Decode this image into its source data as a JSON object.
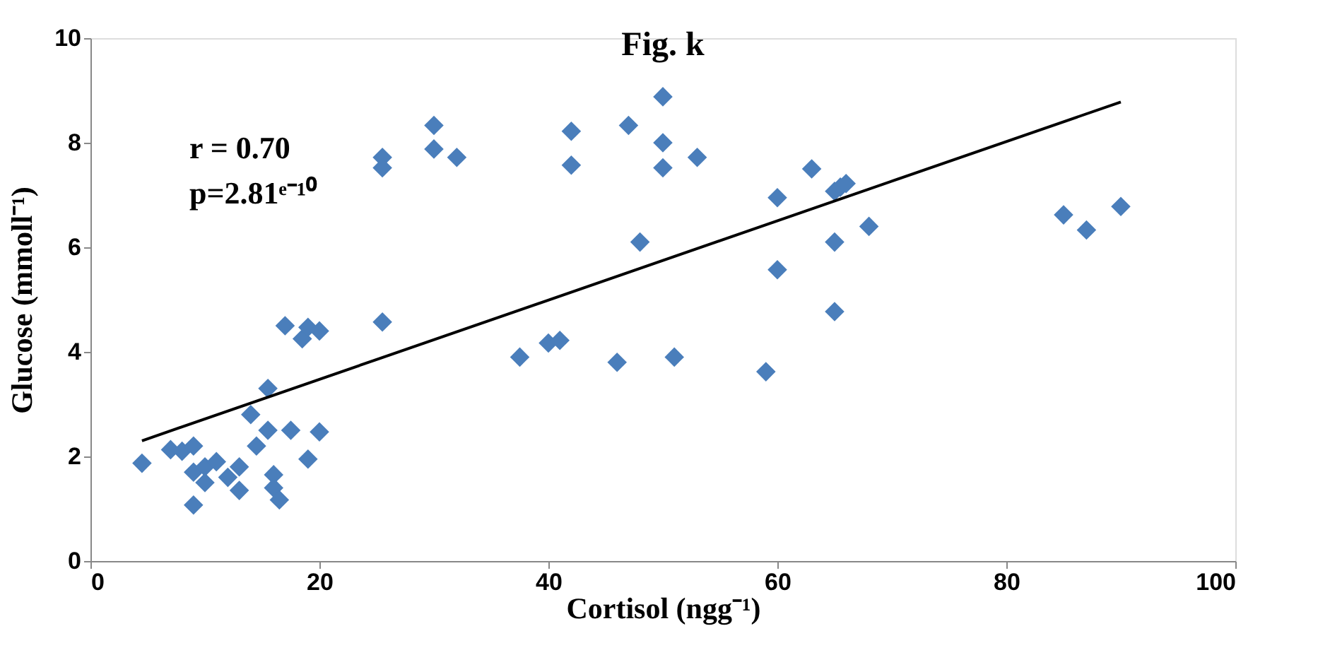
{
  "chart_data": {
    "type": "scatter",
    "title": "Fig. k",
    "xlabel": "Cortisol (ngg⁻¹)",
    "ylabel": "Glucose (mmoll⁻¹)",
    "xlim": [
      0,
      100
    ],
    "xticks": [
      0,
      20,
      40,
      60,
      80,
      100
    ],
    "ylim": [
      0,
      10
    ],
    "yticks": [
      0,
      2,
      4,
      6,
      8,
      10
    ],
    "grid": false,
    "annotations": [
      "r = 0.70",
      "p=2.81ᵉ⁻¹⁰"
    ],
    "series": [
      {
        "color": "#4a7ebb",
        "marker": "diamond",
        "x": [
          4.5,
          7,
          8,
          9,
          9,
          9,
          10,
          10,
          11,
          12,
          13,
          13,
          14,
          14.5,
          15.5,
          15.5,
          16,
          16,
          16.5,
          17,
          17.5,
          18.5,
          19,
          19,
          20,
          20,
          25.5,
          25.5,
          25.5,
          30,
          30,
          32,
          37.5,
          40,
          41,
          42,
          42,
          46,
          47,
          48,
          50,
          50,
          50,
          51,
          53,
          59,
          60,
          60,
          63,
          65,
          65.5,
          66,
          65,
          65,
          68,
          85,
          87,
          90
        ],
        "values": [
          1.87,
          2.13,
          2.1,
          2.2,
          1.7,
          1.07,
          1.8,
          1.5,
          1.9,
          1.6,
          1.8,
          1.35,
          2.8,
          2.2,
          3.3,
          2.5,
          1.65,
          1.4,
          1.17,
          4.5,
          2.5,
          4.25,
          4.47,
          1.95,
          2.47,
          4.4,
          4.57,
          7.72,
          7.52,
          8.33,
          7.88,
          7.72,
          3.9,
          4.17,
          4.22,
          8.22,
          7.57,
          3.8,
          8.33,
          6.1,
          8.88,
          8.0,
          7.52,
          3.9,
          7.72,
          3.62,
          6.95,
          5.57,
          7.5,
          7.07,
          7.15,
          7.22,
          6.1,
          4.77,
          6.4,
          6.62,
          6.33,
          6.78
        ]
      },
      {
        "type": "line",
        "color": "#000000",
        "line_style": "solid",
        "marker": "none",
        "x": [
          4.5,
          90
        ],
        "values": [
          2.3,
          8.78
        ]
      }
    ]
  }
}
